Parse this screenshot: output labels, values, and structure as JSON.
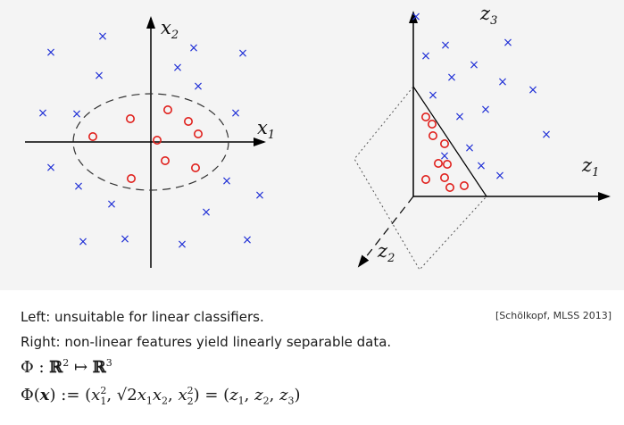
{
  "left_panel": {
    "x_label": "x",
    "x_sub": "1",
    "y_label": "x",
    "y_sub": "2"
  },
  "right_panel": {
    "z1_label": "z",
    "z1_sub": "1",
    "z2_label": "z",
    "z2_sub": "2",
    "z3_label": "z",
    "z3_sub": "3"
  },
  "markers": {
    "cross_symbol": "×",
    "circle_symbol": "o",
    "cross_color": "#1f2fd6",
    "circle_color": "#e0201c"
  },
  "caption": {
    "left": "Left:  unsuitable for linear classifiers.",
    "right": "Right:  non-linear features yield linearly separable data.",
    "citation": "[Schölkopf, MLSS 2013]"
  },
  "formula_map": {
    "phi": "Φ",
    "colon": " : ",
    "domain": "ℝ",
    "domain_exp": "2",
    "arrow": " ↦ ",
    "codomain": "ℝ",
    "codomain_exp": "3"
  },
  "formula_def": {
    "lhs": "Φ(",
    "lhs_var": "x",
    "lhs_close": ") := (",
    "x1": "x",
    "x1_sub": "1",
    "x1_exp": "2",
    "sep1": ", ",
    "sqrt": "√2",
    "x1b": "x",
    "x1b_sub": "1",
    "x2b": "x",
    "x2b_sub": "2",
    "sep2": ", ",
    "x2": "x",
    "x2_sub": "2",
    "x2_exp": "2",
    "rhs": ") = (",
    "z1": "z",
    "z1_sub": "1",
    "z2": "z",
    "z2_sub": "2",
    "z3": "z",
    "z3_sub": "3",
    "end": ")"
  }
}
